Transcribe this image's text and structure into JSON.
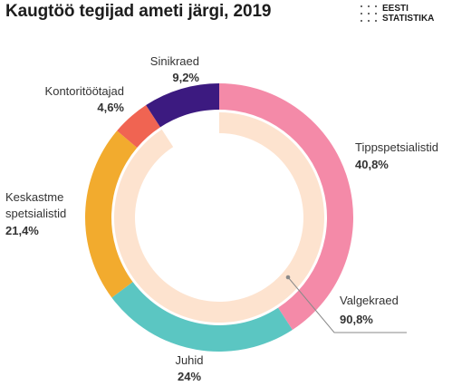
{
  "header": {
    "title": "Kaugtöö tegijad ameti järgi, 2019"
  },
  "logo": {
    "line1": "EESTI",
    "line2": "STATISTIKA"
  },
  "chart_data": {
    "type": "pie",
    "title": "Kaugtöö tegijad ameti järgi, 2019",
    "inner_ring": [
      {
        "name": "Valgekraed",
        "value": 90.8,
        "label": "90,8%",
        "color": "#fde3cf"
      }
    ],
    "outer_ring": [
      {
        "name": "Tippspetsialistid",
        "value": 40.8,
        "label": "40,8%",
        "color": "#f48aa8"
      },
      {
        "name": "Juhid",
        "value": 24,
        "label": "24%",
        "color": "#5bc6c2"
      },
      {
        "name": "Keskastme spetsialistid",
        "value": 21.4,
        "label": "21,4%",
        "color": "#f2ab2e"
      },
      {
        "name": "Kontoritöötajad",
        "value": 4.6,
        "label": "4,6%",
        "color": "#f06452"
      },
      {
        "name": "Sinikraed",
        "value": 9.2,
        "label": "9,2%",
        "color": "#3c1a80"
      }
    ],
    "annotations": [
      {
        "text": "Valgekraed",
        "value_text": "90,8%"
      },
      {
        "text": "Tippspetsialistid",
        "value_text": "40,8%"
      },
      {
        "text": "Juhid",
        "value_text": "24%"
      },
      {
        "text": "Keskastme spetsialistid",
        "line1": "Keskastme",
        "line2": "spetsialistid",
        "value_text": "21,4%"
      },
      {
        "text": "Kontoritöötajad",
        "value_text": "4,6%"
      },
      {
        "text": "Sinikraed",
        "value_text": "9,2%"
      }
    ]
  }
}
